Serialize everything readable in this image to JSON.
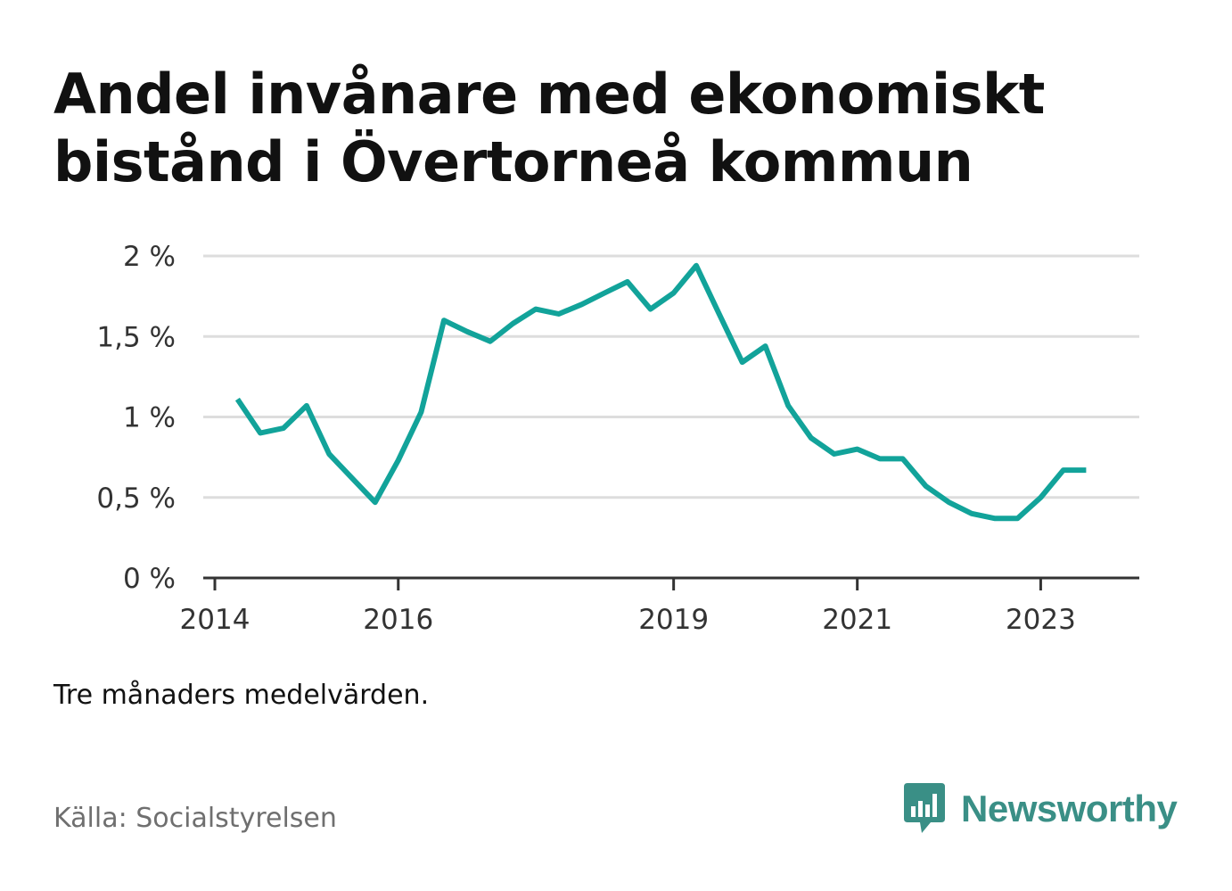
{
  "title": "Andel invånare med ekonomiskt bistånd i Övertorneå kommun",
  "note": "Tre månaders medelvärden.",
  "source": "Källa: Socialstyrelsen",
  "brand": {
    "name": "Newsworthy",
    "icon": "bar-chart-speech-bubble-icon",
    "color": "#3a8f86"
  },
  "colors": {
    "line": "#12a39a",
    "grid": "#dddddd",
    "axis": "#333333"
  },
  "chart_data": {
    "type": "line",
    "title": "Andel invånare med ekonomiskt bistånd i Övertorneå kommun",
    "xlabel": "",
    "ylabel": "",
    "ylim": [
      0,
      2
    ],
    "xlim": [
      "2014-01-01",
      "2023-12-31"
    ],
    "y_ticks": [
      {
        "value": 0,
        "label": "0 %"
      },
      {
        "value": 0.5,
        "label": "0,5 %"
      },
      {
        "value": 1,
        "label": "1 %"
      },
      {
        "value": 1.5,
        "label": "1,5 %"
      },
      {
        "value": 2,
        "label": "2 %"
      }
    ],
    "x_ticks": [
      {
        "value": "2014-01-01",
        "label": "2014"
      },
      {
        "value": "2016-01-01",
        "label": "2016"
      },
      {
        "value": "2019-01-01",
        "label": "2019"
      },
      {
        "value": "2021-01-01",
        "label": "2021"
      },
      {
        "value": "2023-01-01",
        "label": "2023"
      }
    ],
    "grid": true,
    "legend": "none",
    "series": [
      {
        "points": [
          {
            "x": "2014-04-01",
            "y": 1.11
          },
          {
            "x": "2014-07-01",
            "y": 0.9
          },
          {
            "x": "2014-10-01",
            "y": 0.93
          },
          {
            "x": "2015-01-01",
            "y": 1.07
          },
          {
            "x": "2015-04-01",
            "y": 0.77
          },
          {
            "x": "2015-07-01",
            "y": 0.62
          },
          {
            "x": "2015-10-01",
            "y": 0.47
          },
          {
            "x": "2016-01-01",
            "y": 0.73
          },
          {
            "x": "2016-04-01",
            "y": 1.03
          },
          {
            "x": "2016-07-01",
            "y": 1.6
          },
          {
            "x": "2016-10-01",
            "y": 1.53
          },
          {
            "x": "2017-01-01",
            "y": 1.47
          },
          {
            "x": "2017-04-01",
            "y": 1.58
          },
          {
            "x": "2017-07-01",
            "y": 1.67
          },
          {
            "x": "2017-10-01",
            "y": 1.64
          },
          {
            "x": "2018-01-01",
            "y": 1.7
          },
          {
            "x": "2018-04-01",
            "y": 1.77
          },
          {
            "x": "2018-07-01",
            "y": 1.84
          },
          {
            "x": "2018-10-01",
            "y": 1.67
          },
          {
            "x": "2019-01-01",
            "y": 1.77
          },
          {
            "x": "2019-04-01",
            "y": 1.94
          },
          {
            "x": "2019-07-01",
            "y": 1.64
          },
          {
            "x": "2019-10-01",
            "y": 1.34
          },
          {
            "x": "2020-01-01",
            "y": 1.44
          },
          {
            "x": "2020-04-01",
            "y": 1.07
          },
          {
            "x": "2020-07-01",
            "y": 0.87
          },
          {
            "x": "2020-10-01",
            "y": 0.77
          },
          {
            "x": "2021-01-01",
            "y": 0.8
          },
          {
            "x": "2021-04-01",
            "y": 0.74
          },
          {
            "x": "2021-07-01",
            "y": 0.74
          },
          {
            "x": "2021-10-01",
            "y": 0.57
          },
          {
            "x": "2022-01-01",
            "y": 0.47
          },
          {
            "x": "2022-04-01",
            "y": 0.4
          },
          {
            "x": "2022-07-01",
            "y": 0.37
          },
          {
            "x": "2022-10-01",
            "y": 0.37
          },
          {
            "x": "2023-01-01",
            "y": 0.5
          },
          {
            "x": "2023-04-01",
            "y": 0.67
          },
          {
            "x": "2023-07-01",
            "y": 0.67
          }
        ]
      }
    ]
  }
}
